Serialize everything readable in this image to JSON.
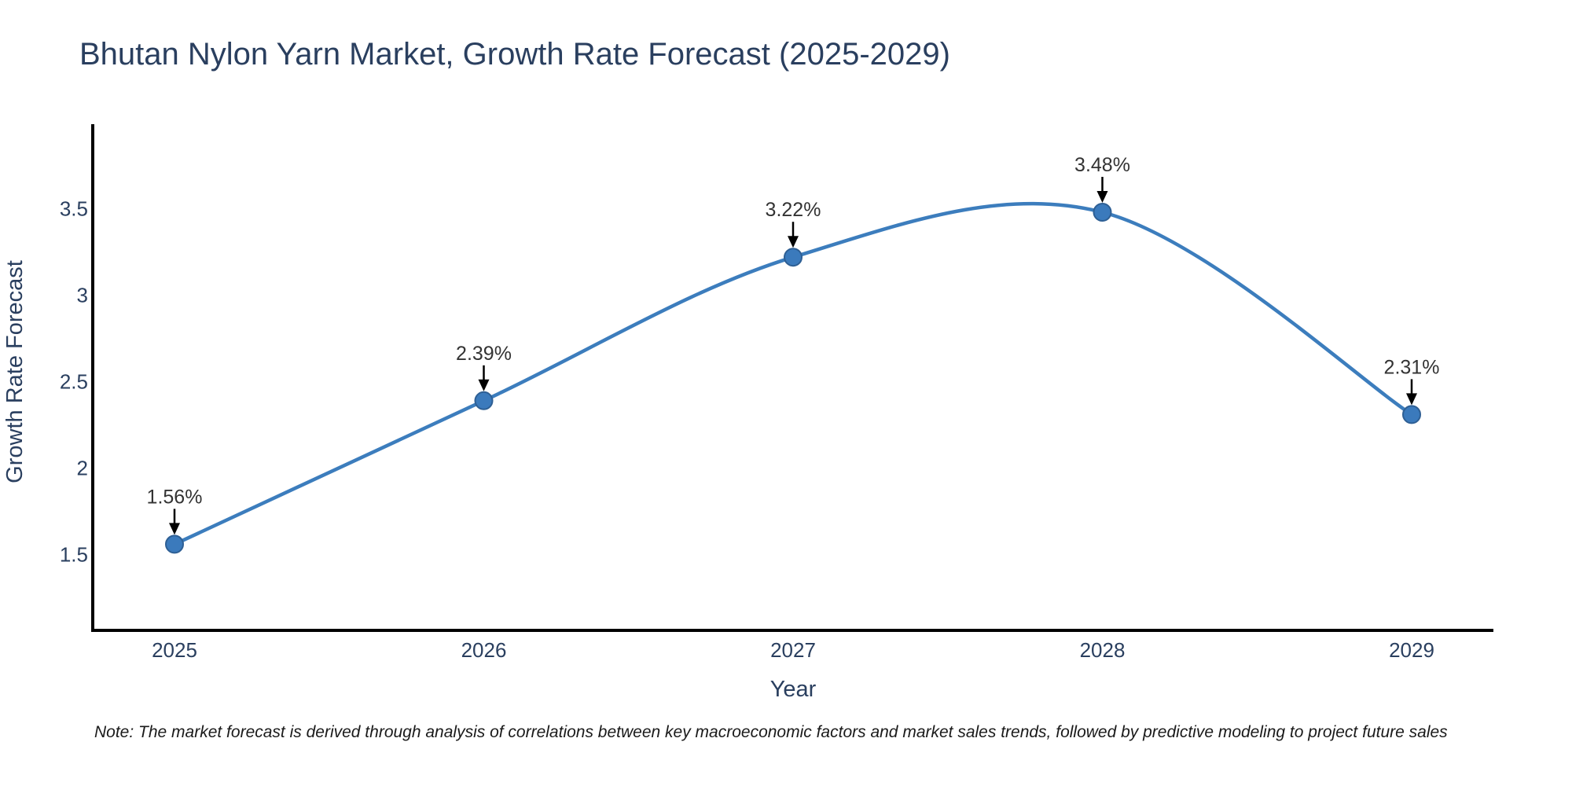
{
  "title": "Bhutan Nylon Yarn Market, Growth Rate Forecast (2025-2029)",
  "note": "Note: The market forecast is derived through analysis of correlations between key macroeconomic factors and market sales trends, followed by predictive modeling to project future sales",
  "chart_data": {
    "type": "line",
    "title": "Bhutan Nylon Yarn Market, Growth Rate Forecast (2025-2029)",
    "xlabel": "Year",
    "ylabel": "Growth Rate Forecast",
    "x": [
      2025,
      2026,
      2027,
      2028,
      2029
    ],
    "values": [
      1.56,
      2.39,
      3.22,
      3.48,
      2.31
    ],
    "point_labels": [
      "1.56%",
      "2.39%",
      "3.22%",
      "3.48%",
      "2.31%"
    ],
    "x_tick_labels": [
      "2025",
      "2026",
      "2027",
      "2028",
      "2029"
    ],
    "y_ticks": [
      1.5,
      2,
      2.5,
      3,
      3.5
    ],
    "y_tick_labels": [
      "1.5",
      "2",
      "2.5",
      "3",
      "3.5"
    ],
    "ylim": [
      1.0,
      3.95
    ],
    "line_shape": "spline",
    "grid": false,
    "legend": false,
    "colors": {
      "line": "#3c7dbd",
      "marker": "#3b7abc",
      "marker_edge": "#2e5f94",
      "annotation_text": "#333333",
      "annotation_arrow": "#000000",
      "axis_line": "#000000",
      "text": "#2a3f5f",
      "background": "#ffffff"
    }
  }
}
